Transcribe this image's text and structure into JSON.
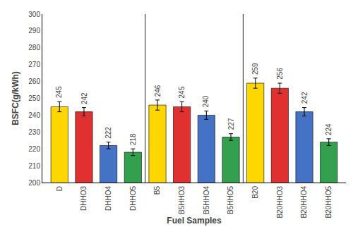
{
  "chart_data": {
    "type": "bar",
    "xlabel": "Fuel Samples",
    "ylabel": "BSFC(g/kWh)",
    "categories": [
      "D",
      "DHHO3",
      "DHHO4",
      "DHHO5",
      "B5",
      "B5HHO3",
      "B5HHO4",
      "B5HHO5",
      "B20",
      "B20HHO3",
      "B20HHO4",
      "B20HHO5"
    ],
    "values": [
      245,
      242,
      222,
      218,
      246,
      245,
      240,
      227,
      259,
      256,
      242,
      224
    ],
    "errors": [
      3,
      2.5,
      2,
      2,
      3,
      3,
      2.5,
      2,
      3,
      3,
      2.5,
      2
    ],
    "colors": [
      "#FFD700",
      "#E03030",
      "#4472C4",
      "#33A050",
      "#FFD700",
      "#E03030",
      "#4472C4",
      "#33A050",
      "#FFD700",
      "#E03030",
      "#4472C4",
      "#33A050"
    ],
    "ylim": [
      200,
      300
    ],
    "yticks": [
      200,
      210,
      220,
      230,
      240,
      250,
      260,
      270,
      280,
      290,
      300
    ],
    "data_labels": true,
    "grid": false
  }
}
